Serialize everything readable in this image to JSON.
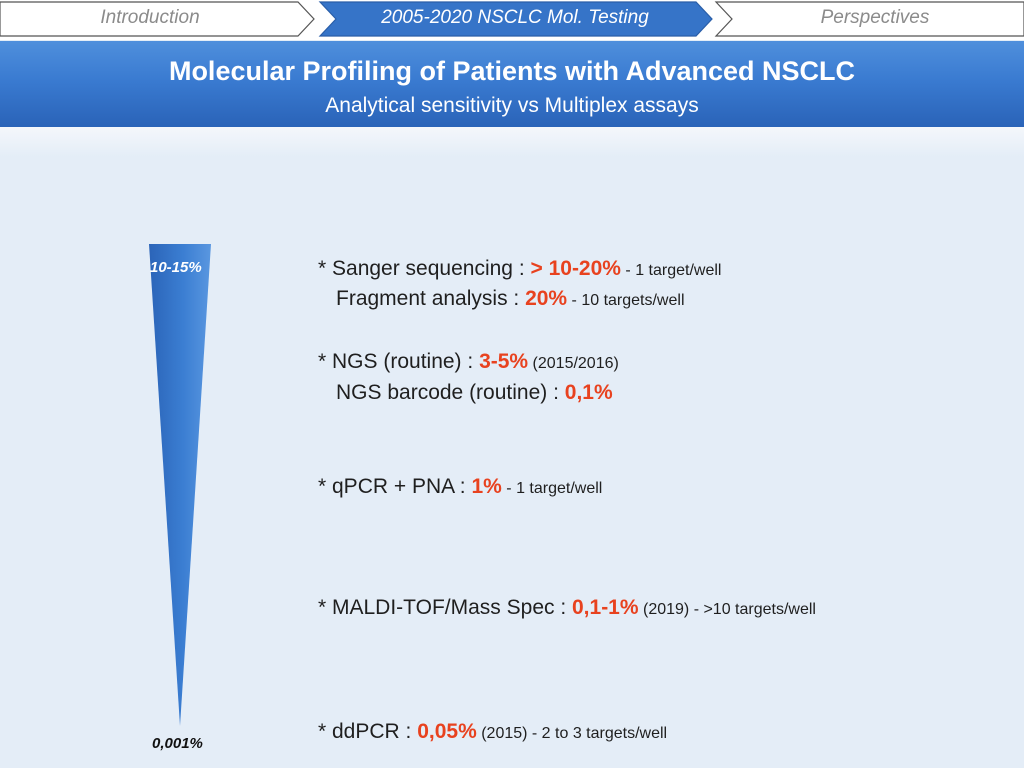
{
  "nav": {
    "items": [
      {
        "label": "Introduction",
        "active": false
      },
      {
        "label": "2005-2020 NSCLC Mol. Testing",
        "active": true
      },
      {
        "label": "Perspectives",
        "active": false
      }
    ]
  },
  "header": {
    "title": "Molecular Profiling of Patients with Advanced NSCLC",
    "subtitle": "Analytical sensitivity vs Multiplex assays"
  },
  "scale": {
    "top_label": "10-15%",
    "bottom_label": "0,001%"
  },
  "assays": {
    "sanger": {
      "prefix": "* Sanger sequencing : ",
      "value": "> 10-20%",
      "suffix": " - 1 target/well"
    },
    "fragment": {
      "prefix": "Fragment analysis : ",
      "value": "20%",
      "suffix": " - 10 targets/well"
    },
    "ngs": {
      "prefix": "* NGS (routine) : ",
      "value": "3-5%",
      "suffix": " (2015/2016)"
    },
    "ngs_barcode": {
      "prefix": "NGS barcode (routine) : ",
      "value": "0,1%",
      "suffix": ""
    },
    "qpcr": {
      "prefix": "* qPCR + PNA : ",
      "value": "1%",
      "suffix": " - 1  target/well"
    },
    "maldi": {
      "prefix": "* MALDI-TOF/Mass Spec : ",
      "value": "0,1-1%",
      "suffix": " (2019) - >10 targets/well"
    },
    "ddpcr": {
      "prefix": "* ddPCR  : ",
      "value": "0,05%",
      "suffix": "  (2015) - 2 to 3 targets/well"
    }
  },
  "colors": {
    "accent": "#3a7bd1",
    "value_highlight": "#e8421f",
    "background": "#e4edf7"
  }
}
